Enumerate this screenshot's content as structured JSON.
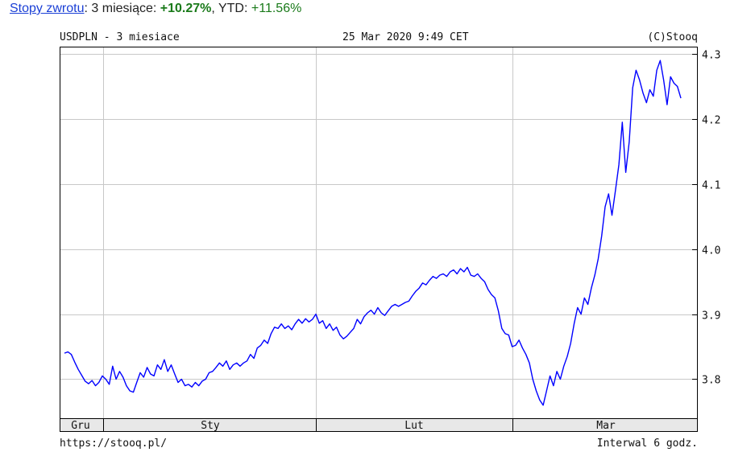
{
  "header": {
    "link_label": "Stopy zwrotu",
    "sep1": ":",
    "period_label": "3 miesiące:",
    "period_value": "+10.27%",
    "sep2": ",",
    "ytd_label": "YTD:",
    "ytd_value": "+11.56%"
  },
  "chart_data": {
    "type": "line",
    "title": "USDPLN - 3 miesiace",
    "timestamp": "25 Mar 2020 9:49 CET",
    "copyright": "(C)Stooq",
    "footer_left": "https://stooq.pl/",
    "footer_right": "Interwal 6 godz.",
    "ylim": [
      3.74,
      4.31
    ],
    "yticks": [
      "3.8",
      "3.9",
      "4.0",
      "4.1",
      "4.2",
      "4.3"
    ],
    "xticks": [
      "Gru",
      "Sty",
      "Lut",
      "Mar"
    ],
    "grid": true,
    "line_color": "#0000ff",
    "series": [
      {
        "values": [
          3.84,
          3.842,
          3.838,
          3.826,
          3.815,
          3.806,
          3.797,
          3.793,
          3.798,
          3.79,
          3.795,
          3.805,
          3.8,
          3.792,
          3.82,
          3.8,
          3.812,
          3.803,
          3.79,
          3.782,
          3.78,
          3.795,
          3.81,
          3.803,
          3.818,
          3.808,
          3.805,
          3.822,
          3.815,
          3.83,
          3.812,
          3.822,
          3.808,
          3.795,
          3.8,
          3.79,
          3.792,
          3.788,
          3.795,
          3.79,
          3.797,
          3.8,
          3.81,
          3.812,
          3.818,
          3.825,
          3.82,
          3.828,
          3.815,
          3.822,
          3.825,
          3.82,
          3.825,
          3.828,
          3.838,
          3.832,
          3.848,
          3.852,
          3.86,
          3.855,
          3.87,
          3.88,
          3.878,
          3.885,
          3.878,
          3.882,
          3.876,
          3.885,
          3.892,
          3.886,
          3.893,
          3.888,
          3.892,
          3.9,
          3.886,
          3.89,
          3.878,
          3.885,
          3.875,
          3.88,
          3.868,
          3.862,
          3.866,
          3.872,
          3.878,
          3.892,
          3.885,
          3.896,
          3.902,
          3.906,
          3.9,
          3.91,
          3.902,
          3.898,
          3.905,
          3.912,
          3.915,
          3.912,
          3.915,
          3.918,
          3.92,
          3.928,
          3.935,
          3.94,
          3.948,
          3.945,
          3.952,
          3.958,
          3.955,
          3.96,
          3.962,
          3.958,
          3.965,
          3.968,
          3.962,
          3.97,
          3.965,
          3.972,
          3.96,
          3.958,
          3.962,
          3.955,
          3.95,
          3.938,
          3.93,
          3.925,
          3.905,
          3.878,
          3.87,
          3.868,
          3.85,
          3.852,
          3.86,
          3.848,
          3.838,
          3.825,
          3.8,
          3.782,
          3.768,
          3.76,
          3.782,
          3.805,
          3.79,
          3.812,
          3.8,
          3.82,
          3.835,
          3.855,
          3.885,
          3.91,
          3.9,
          3.925,
          3.915,
          3.94,
          3.96,
          3.985,
          4.02,
          4.065,
          4.085,
          4.052,
          4.09,
          4.13,
          4.195,
          4.118,
          4.165,
          4.248,
          4.275,
          4.26,
          4.24,
          4.225,
          4.245,
          4.235,
          4.275,
          4.29,
          4.26,
          4.222,
          4.265,
          4.255,
          4.25,
          4.232
        ]
      }
    ]
  }
}
